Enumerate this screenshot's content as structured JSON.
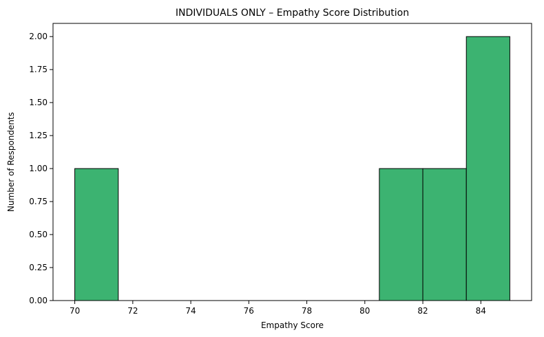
{
  "chart_data": {
    "type": "bar",
    "subtype": "histogram",
    "title": "INDIVIDUALS ONLY – Empathy Score Distribution",
    "xlabel": "Empathy Score",
    "ylabel": "Number of Respondents",
    "xlim": [
      69.25,
      85.75
    ],
    "ylim": [
      0,
      2.1
    ],
    "bins": [
      {
        "start": 70.0,
        "end": 71.5,
        "count": 1
      },
      {
        "start": 71.5,
        "end": 73.0,
        "count": 0
      },
      {
        "start": 73.0,
        "end": 74.5,
        "count": 0
      },
      {
        "start": 74.5,
        "end": 76.0,
        "count": 0
      },
      {
        "start": 76.0,
        "end": 77.5,
        "count": 0
      },
      {
        "start": 77.5,
        "end": 79.0,
        "count": 0
      },
      {
        "start": 79.0,
        "end": 80.5,
        "count": 0
      },
      {
        "start": 80.5,
        "end": 82.0,
        "count": 1
      },
      {
        "start": 82.0,
        "end": 83.5,
        "count": 1
      },
      {
        "start": 83.5,
        "end": 85.0,
        "count": 2
      }
    ],
    "x_ticks": [
      70,
      72,
      74,
      76,
      78,
      80,
      82,
      84
    ],
    "x_tick_labels": [
      "70",
      "72",
      "74",
      "76",
      "78",
      "80",
      "82",
      "84"
    ],
    "y_ticks": [
      0,
      0.25,
      0.5,
      0.75,
      1.0,
      1.25,
      1.5,
      1.75,
      2.0
    ],
    "y_tick_labels": [
      "0.00",
      "0.25",
      "0.50",
      "0.75",
      "1.00",
      "1.25",
      "1.50",
      "1.75",
      "2.00"
    ],
    "grid": false,
    "colors": {
      "bar_fill": "#3cb371",
      "bar_edge": "#000000"
    }
  }
}
